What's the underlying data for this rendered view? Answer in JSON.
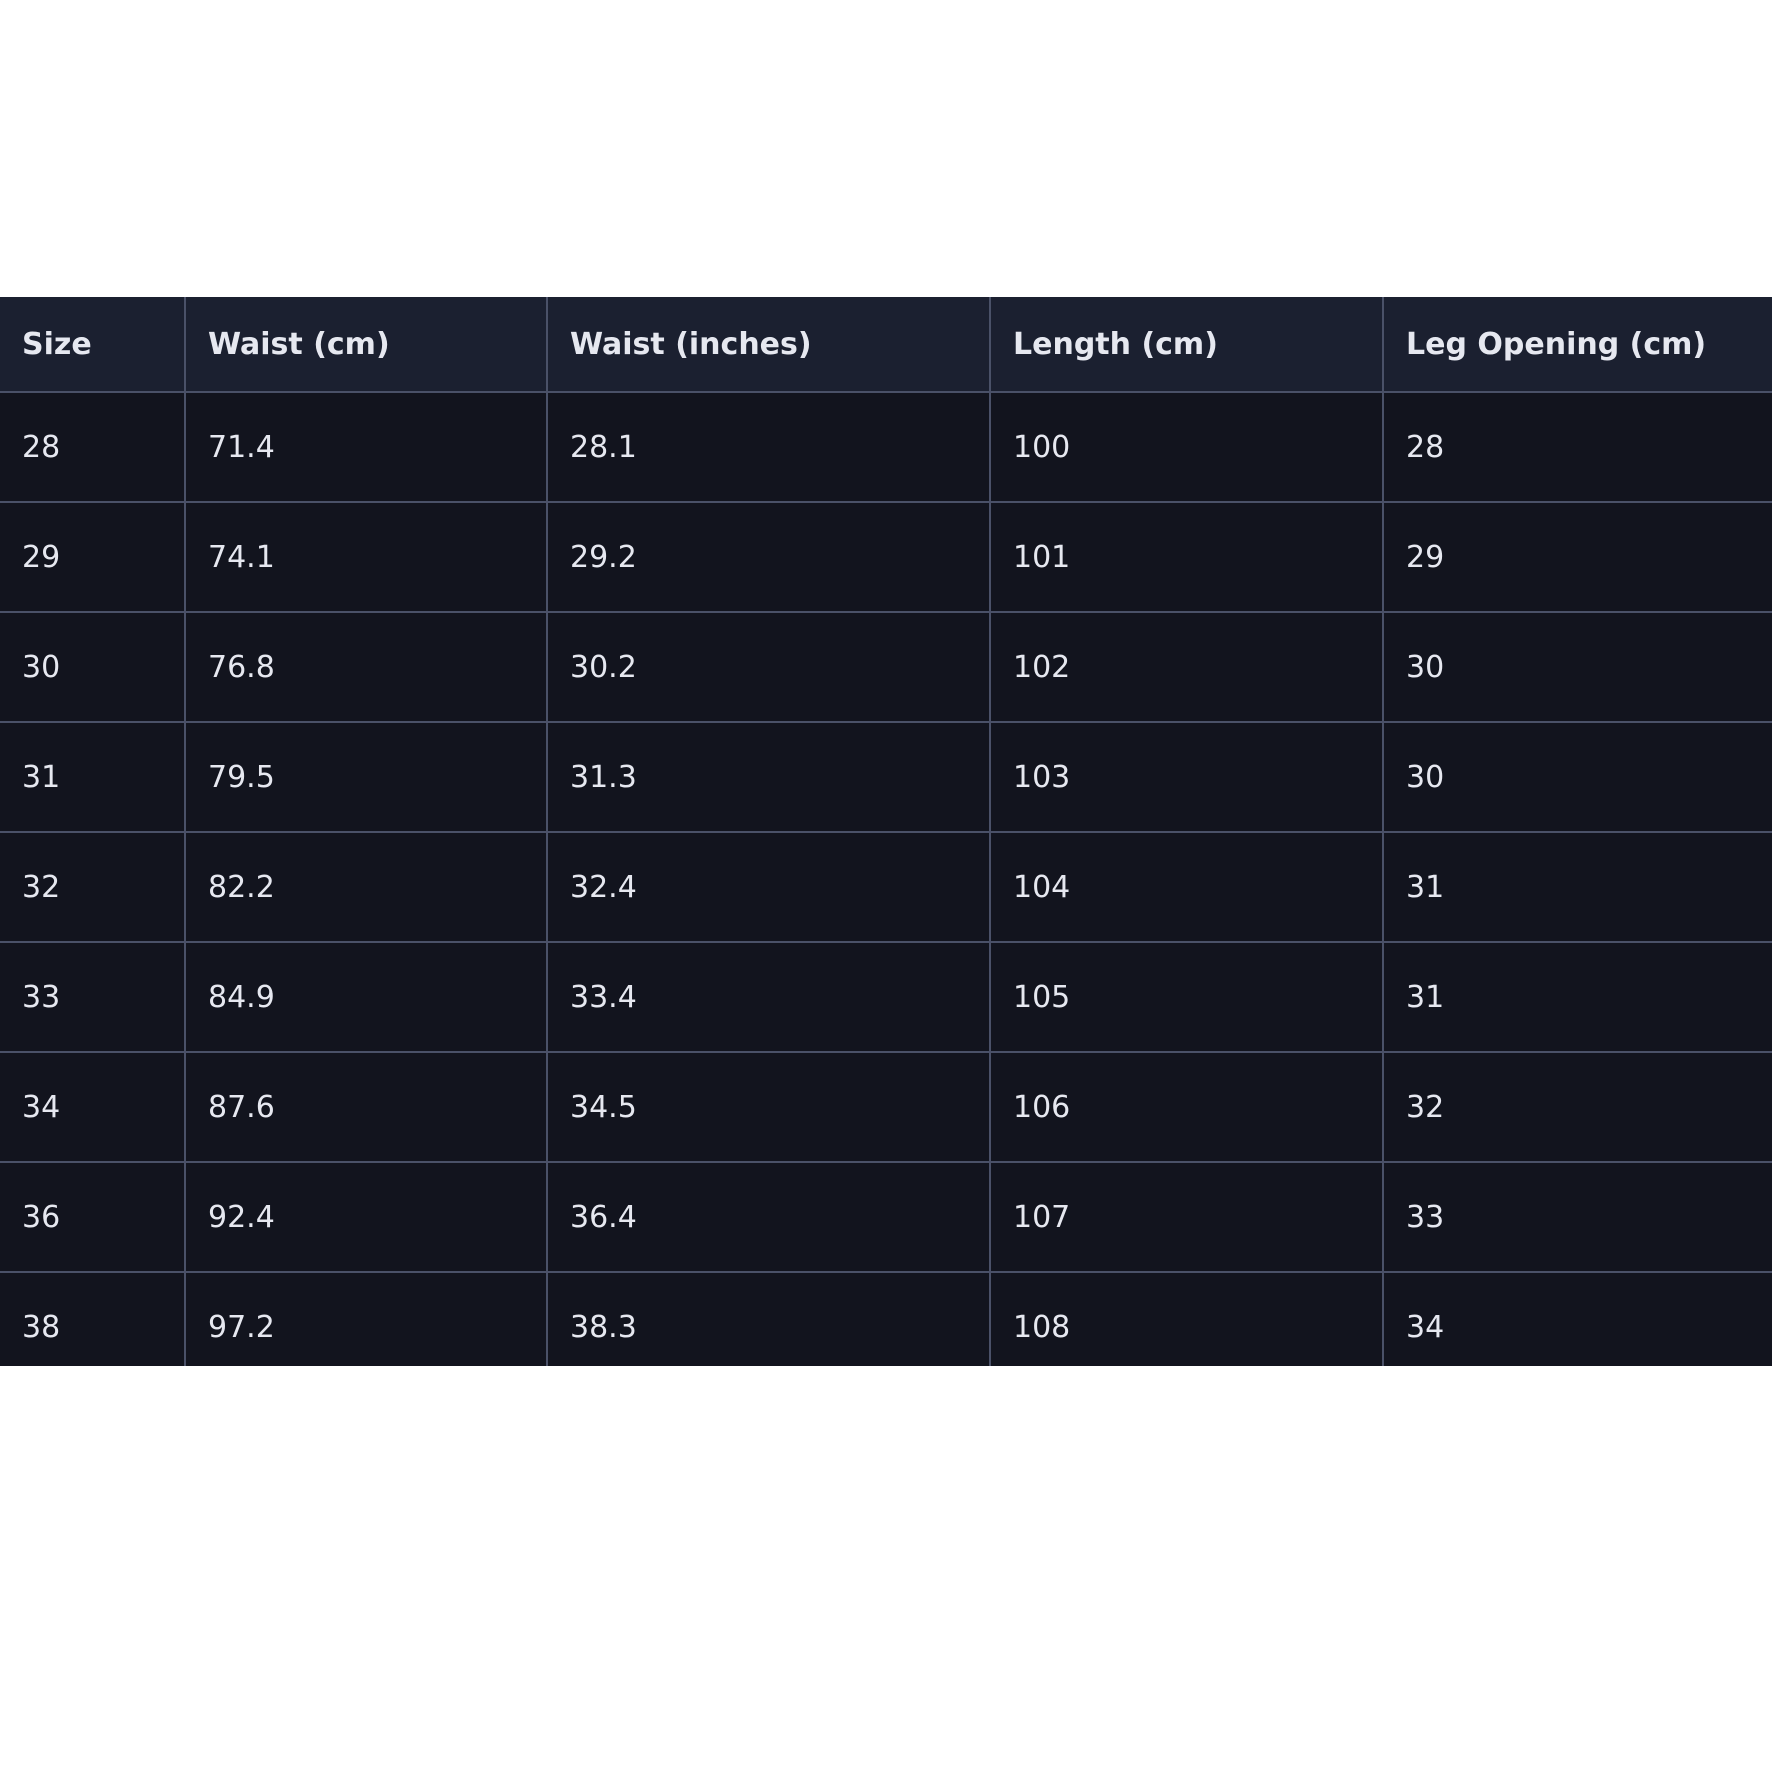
{
  "table": {
    "headers": [
      "Size",
      "Waist (cm)",
      "Waist (inches)",
      "Length (cm)",
      "Leg Opening (cm)"
    ],
    "rows": [
      [
        "28",
        "71.4",
        "28.1",
        "100",
        "28"
      ],
      [
        "29",
        "74.1",
        "29.2",
        "101",
        "29"
      ],
      [
        "30",
        "76.8",
        "30.2",
        "102",
        "30"
      ],
      [
        "31",
        "79.5",
        "31.3",
        "103",
        "30"
      ],
      [
        "32",
        "82.2",
        "32.4",
        "104",
        "31"
      ],
      [
        "33",
        "84.9",
        "33.4",
        "105",
        "31"
      ],
      [
        "34",
        "87.6",
        "34.5",
        "106",
        "32"
      ],
      [
        "36",
        "92.4",
        "36.4",
        "107",
        "33"
      ],
      [
        "38",
        "97.2",
        "38.3",
        "108",
        "34"
      ]
    ]
  },
  "colors": {
    "header_bg": "#1b2030",
    "body_bg": "#12141e",
    "border": "#4a5168",
    "text": "#e6e8f0"
  }
}
